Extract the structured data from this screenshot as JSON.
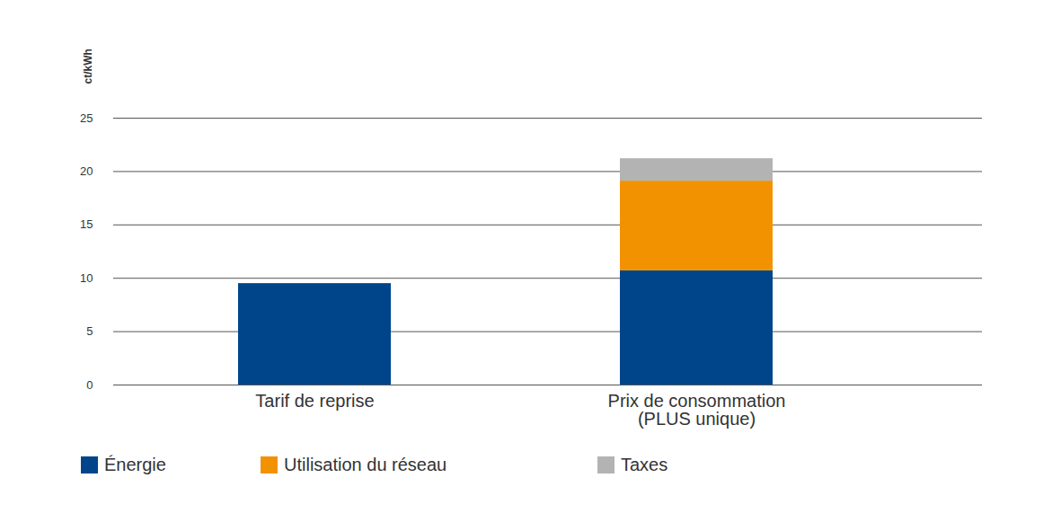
{
  "chart_data": {
    "type": "bar",
    "stacked": true,
    "y_label": "ct/kWh",
    "categories": [
      "Tarif de reprise",
      "Prix de consommation\n(PLUS unique)"
    ],
    "series": [
      {
        "name": "Énergie",
        "color": "#00458a",
        "values": [
          9.5,
          10.7
        ]
      },
      {
        "name": "Utilisation du réseau",
        "color": "#f39200",
        "values": [
          0,
          8.4
        ]
      },
      {
        "name": "Taxes",
        "color": "#b3b3b3",
        "values": [
          0,
          2.1
        ]
      }
    ],
    "ylim": [
      0,
      25
    ],
    "yticks": [
      0,
      5,
      10,
      15,
      20,
      25
    ],
    "grid": true,
    "legend": "bottom-left"
  }
}
